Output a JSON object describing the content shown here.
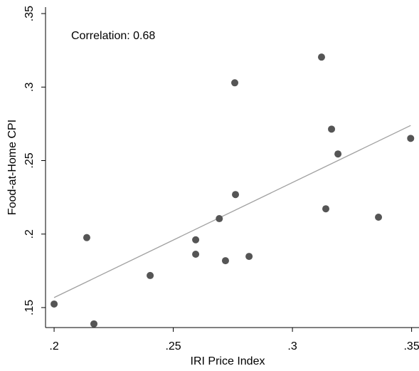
{
  "chart_data": {
    "type": "scatter",
    "x_label": "IRI Price Index",
    "y_label": "Food-at-Home CPI",
    "annotation": "Correlation: 0.68",
    "x": [
      0.2,
      0.2137,
      0.2167,
      0.2403,
      0.2594,
      0.2594,
      0.2693,
      0.2719,
      0.2758,
      0.2761,
      0.2818,
      0.3122,
      0.314,
      0.3164,
      0.3191,
      0.3361,
      0.3496
    ],
    "series": [
      {
        "color": "#555555",
        "values": [
          0.1524,
          0.1976,
          0.1389,
          0.1718,
          0.1961,
          0.1863,
          0.2105,
          0.1819,
          0.3029,
          0.2269,
          0.1848,
          0.3204,
          0.2172,
          0.2714,
          0.2545,
          0.2115,
          0.2651
        ]
      }
    ],
    "fit_line": {
      "color": "#a0a0a0",
      "x": [
        0.2,
        0.3496
      ],
      "y": [
        0.1568,
        0.2739
      ]
    },
    "xlim": [
      0.1964,
      0.3531
    ],
    "ylim": [
      0.1364,
      0.3544
    ],
    "xticks": [
      {
        "value": 0.2,
        "label": ".2"
      },
      {
        "value": 0.25,
        "label": ".25"
      },
      {
        "value": 0.3,
        "label": ".3"
      },
      {
        "value": 0.35,
        "label": ".35"
      }
    ],
    "yticks": [
      {
        "value": 0.15,
        "label": ".15"
      },
      {
        "value": 0.2,
        "label": ".2"
      },
      {
        "value": 0.25,
        "label": ".25"
      },
      {
        "value": 0.3,
        "label": ".3"
      },
      {
        "value": 0.35,
        "label": ".35"
      }
    ],
    "grid": false
  }
}
